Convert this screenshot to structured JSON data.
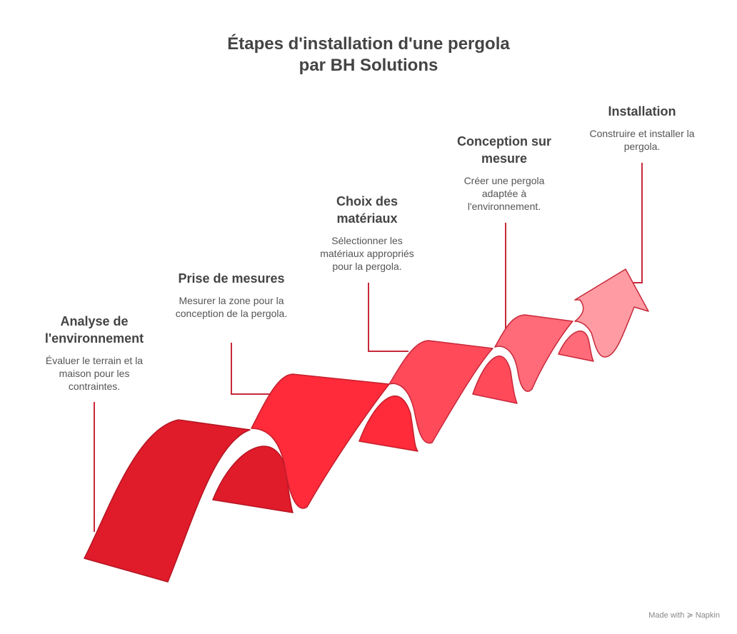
{
  "title": [
    "Étapes d'installation d'une pergola",
    "par BH Solutions"
  ],
  "steps": [
    {
      "title": "Analyse de l'environnement",
      "description": "Évaluer le terrain et la maison pour les contraintes."
    },
    {
      "title": "Prise de mesures",
      "description": "Mesurer la zone pour la conception de la pergola."
    },
    {
      "title": "Choix des matériaux",
      "description": "Sélectionner les matériaux appropriés pour la pergola."
    },
    {
      "title": "Conception sur mesure",
      "description": "Créer une pergola adaptée à l'environnement."
    },
    {
      "title": "Installation",
      "description": "Construire et installer la pergola."
    }
  ],
  "footer": {
    "text": "Made with",
    "brand": "Napkin"
  }
}
